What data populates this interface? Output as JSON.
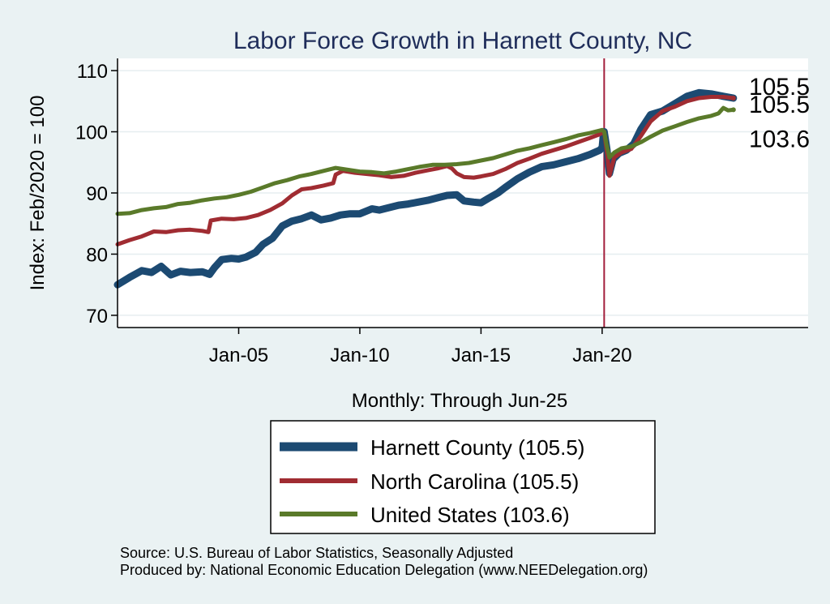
{
  "chart_data": {
    "type": "line",
    "title": "Labor Force Growth in Harnett  County, NC",
    "xlabel": "Monthly: Through Jun-25",
    "ylabel": "Index: Feb/2020 = 100",
    "ylim": [
      68,
      112
    ],
    "yticks": [
      70,
      80,
      90,
      100,
      110
    ],
    "xlim": [
      2000.0,
      2028.5
    ],
    "xticks": [
      {
        "label": "Jan-05",
        "value": 2005.0
      },
      {
        "label": "Jan-10",
        "value": 2010.0
      },
      {
        "label": "Jan-15",
        "value": 2015.0
      },
      {
        "label": "Jan-20",
        "value": 2020.0
      }
    ],
    "reference_line": {
      "x": 2020.083,
      "color": "#a21d3a"
    },
    "grid": "horizontal",
    "legend_position": "bottom",
    "series": [
      {
        "name": "Harnett  County (105.5)",
        "color": "#1c4a72",
        "width": 9,
        "end_label": "105.5",
        "points": [
          [
            2000.0,
            75.0
          ],
          [
            2000.5,
            76.2
          ],
          [
            2001.0,
            77.3
          ],
          [
            2001.4,
            77.0
          ],
          [
            2001.8,
            78.0
          ],
          [
            2002.2,
            76.6
          ],
          [
            2002.6,
            77.2
          ],
          [
            2003.0,
            77.0
          ],
          [
            2003.5,
            77.1
          ],
          [
            2003.8,
            76.7
          ],
          [
            2004.0,
            77.8
          ],
          [
            2004.3,
            79.1
          ],
          [
            2004.7,
            79.3
          ],
          [
            2005.0,
            79.2
          ],
          [
            2005.3,
            79.5
          ],
          [
            2005.7,
            80.3
          ],
          [
            2006.0,
            81.6
          ],
          [
            2006.4,
            82.6
          ],
          [
            2006.8,
            84.6
          ],
          [
            2007.2,
            85.4
          ],
          [
            2007.6,
            85.8
          ],
          [
            2008.0,
            86.4
          ],
          [
            2008.4,
            85.6
          ],
          [
            2008.8,
            85.9
          ],
          [
            2009.2,
            86.4
          ],
          [
            2009.6,
            86.6
          ],
          [
            2010.0,
            86.6
          ],
          [
            2010.5,
            87.4
          ],
          [
            2010.8,
            87.2
          ],
          [
            2011.2,
            87.6
          ],
          [
            2011.6,
            88.0
          ],
          [
            2012.0,
            88.2
          ],
          [
            2012.4,
            88.5
          ],
          [
            2012.8,
            88.8
          ],
          [
            2013.2,
            89.2
          ],
          [
            2013.6,
            89.6
          ],
          [
            2014.0,
            89.7
          ],
          [
            2014.3,
            88.7
          ],
          [
            2014.7,
            88.5
          ],
          [
            2015.0,
            88.4
          ],
          [
            2015.3,
            89.1
          ],
          [
            2015.7,
            90.0
          ],
          [
            2016.0,
            90.9
          ],
          [
            2016.5,
            92.3
          ],
          [
            2017.0,
            93.4
          ],
          [
            2017.5,
            94.3
          ],
          [
            2018.0,
            94.6
          ],
          [
            2018.5,
            95.1
          ],
          [
            2019.0,
            95.6
          ],
          [
            2019.5,
            96.3
          ],
          [
            2019.9,
            97.0
          ],
          [
            2020.0,
            97.4
          ],
          [
            2020.05,
            99.5
          ],
          [
            2020.083,
            100.0
          ],
          [
            2020.2,
            97.0
          ],
          [
            2020.3,
            93.2
          ],
          [
            2020.45,
            95.5
          ],
          [
            2020.7,
            96.5
          ],
          [
            2021.0,
            97.0
          ],
          [
            2021.3,
            98.0
          ],
          [
            2021.6,
            100.4
          ],
          [
            2022.0,
            102.8
          ],
          [
            2022.5,
            103.4
          ],
          [
            2023.0,
            104.6
          ],
          [
            2023.5,
            105.8
          ],
          [
            2024.0,
            106.4
          ],
          [
            2024.5,
            106.2
          ],
          [
            2025.0,
            105.8
          ],
          [
            2025.417,
            105.5
          ]
        ]
      },
      {
        "name": "North Carolina (105.5)",
        "color": "#a02c32",
        "width": 5,
        "end_label": "105.5",
        "points": [
          [
            2000.0,
            81.6
          ],
          [
            2000.5,
            82.3
          ],
          [
            2001.0,
            82.9
          ],
          [
            2001.5,
            83.7
          ],
          [
            2002.0,
            83.6
          ],
          [
            2002.5,
            83.9
          ],
          [
            2003.0,
            84.0
          ],
          [
            2003.5,
            83.8
          ],
          [
            2003.75,
            83.6
          ],
          [
            2003.85,
            85.5
          ],
          [
            2004.3,
            85.8
          ],
          [
            2004.8,
            85.7
          ],
          [
            2005.3,
            85.9
          ],
          [
            2005.8,
            86.4
          ],
          [
            2006.3,
            87.2
          ],
          [
            2006.8,
            88.3
          ],
          [
            2007.2,
            89.6
          ],
          [
            2007.6,
            90.6
          ],
          [
            2008.0,
            90.8
          ],
          [
            2008.5,
            91.2
          ],
          [
            2008.9,
            91.6
          ],
          [
            2009.0,
            93.0
          ],
          [
            2009.3,
            93.6
          ],
          [
            2009.8,
            93.3
          ],
          [
            2010.3,
            93.1
          ],
          [
            2010.8,
            92.9
          ],
          [
            2011.3,
            92.6
          ],
          [
            2011.8,
            92.8
          ],
          [
            2012.3,
            93.3
          ],
          [
            2012.8,
            93.7
          ],
          [
            2013.2,
            94.0
          ],
          [
            2013.6,
            94.4
          ],
          [
            2013.8,
            94.0
          ],
          [
            2014.0,
            93.2
          ],
          [
            2014.3,
            92.6
          ],
          [
            2014.7,
            92.5
          ],
          [
            2015.0,
            92.7
          ],
          [
            2015.5,
            93.1
          ],
          [
            2016.0,
            93.9
          ],
          [
            2016.5,
            94.9
          ],
          [
            2017.0,
            95.6
          ],
          [
            2017.5,
            96.4
          ],
          [
            2018.0,
            97.0
          ],
          [
            2018.5,
            97.6
          ],
          [
            2019.0,
            98.3
          ],
          [
            2019.5,
            99.0
          ],
          [
            2019.9,
            99.6
          ],
          [
            2020.083,
            100.0
          ],
          [
            2020.2,
            96.5
          ],
          [
            2020.3,
            92.8
          ],
          [
            2020.5,
            95.8
          ],
          [
            2020.8,
            96.6
          ],
          [
            2021.2,
            97.2
          ],
          [
            2021.6,
            99.3
          ],
          [
            2022.0,
            101.7
          ],
          [
            2022.5,
            103.4
          ],
          [
            2023.0,
            104.1
          ],
          [
            2023.5,
            105.0
          ],
          [
            2024.0,
            105.5
          ],
          [
            2024.5,
            105.7
          ],
          [
            2025.0,
            105.7
          ],
          [
            2025.417,
            105.5
          ]
        ]
      },
      {
        "name": "United States (103.6)",
        "color": "#5a7a2a",
        "width": 5,
        "end_label": "103.6",
        "points": [
          [
            2000.0,
            86.6
          ],
          [
            2000.5,
            86.7
          ],
          [
            2001.0,
            87.2
          ],
          [
            2001.5,
            87.5
          ],
          [
            2002.0,
            87.7
          ],
          [
            2002.5,
            88.2
          ],
          [
            2003.0,
            88.4
          ],
          [
            2003.5,
            88.8
          ],
          [
            2004.0,
            89.1
          ],
          [
            2004.5,
            89.3
          ],
          [
            2005.0,
            89.7
          ],
          [
            2005.5,
            90.2
          ],
          [
            2006.0,
            90.9
          ],
          [
            2006.5,
            91.6
          ],
          [
            2007.0,
            92.1
          ],
          [
            2007.5,
            92.7
          ],
          [
            2008.0,
            93.1
          ],
          [
            2008.5,
            93.6
          ],
          [
            2009.0,
            94.1
          ],
          [
            2009.5,
            93.8
          ],
          [
            2010.0,
            93.5
          ],
          [
            2010.5,
            93.4
          ],
          [
            2011.0,
            93.2
          ],
          [
            2011.5,
            93.5
          ],
          [
            2012.0,
            93.9
          ],
          [
            2012.5,
            94.3
          ],
          [
            2013.0,
            94.6
          ],
          [
            2013.5,
            94.6
          ],
          [
            2014.0,
            94.7
          ],
          [
            2014.5,
            94.9
          ],
          [
            2015.0,
            95.3
          ],
          [
            2015.5,
            95.7
          ],
          [
            2016.0,
            96.3
          ],
          [
            2016.5,
            96.9
          ],
          [
            2017.0,
            97.3
          ],
          [
            2017.5,
            97.8
          ],
          [
            2018.0,
            98.3
          ],
          [
            2018.5,
            98.8
          ],
          [
            2019.0,
            99.4
          ],
          [
            2019.5,
            99.8
          ],
          [
            2020.0,
            100.3
          ],
          [
            2020.083,
            100.0
          ],
          [
            2020.2,
            97.5
          ],
          [
            2020.3,
            95.8
          ],
          [
            2020.5,
            96.6
          ],
          [
            2020.8,
            97.3
          ],
          [
            2021.2,
            97.6
          ],
          [
            2021.6,
            98.3
          ],
          [
            2022.0,
            99.2
          ],
          [
            2022.5,
            100.2
          ],
          [
            2023.0,
            100.9
          ],
          [
            2023.5,
            101.6
          ],
          [
            2024.0,
            102.2
          ],
          [
            2024.5,
            102.6
          ],
          [
            2024.8,
            103.0
          ],
          [
            2025.0,
            103.9
          ],
          [
            2025.2,
            103.5
          ],
          [
            2025.417,
            103.6
          ]
        ]
      }
    ],
    "footer": {
      "source": "Source: U.S. Bureau of Labor Statistics, Seasonally Adjusted",
      "produced_by": "Produced by: National Economic Education Delegation (www.NEEDelegation.org)"
    }
  }
}
